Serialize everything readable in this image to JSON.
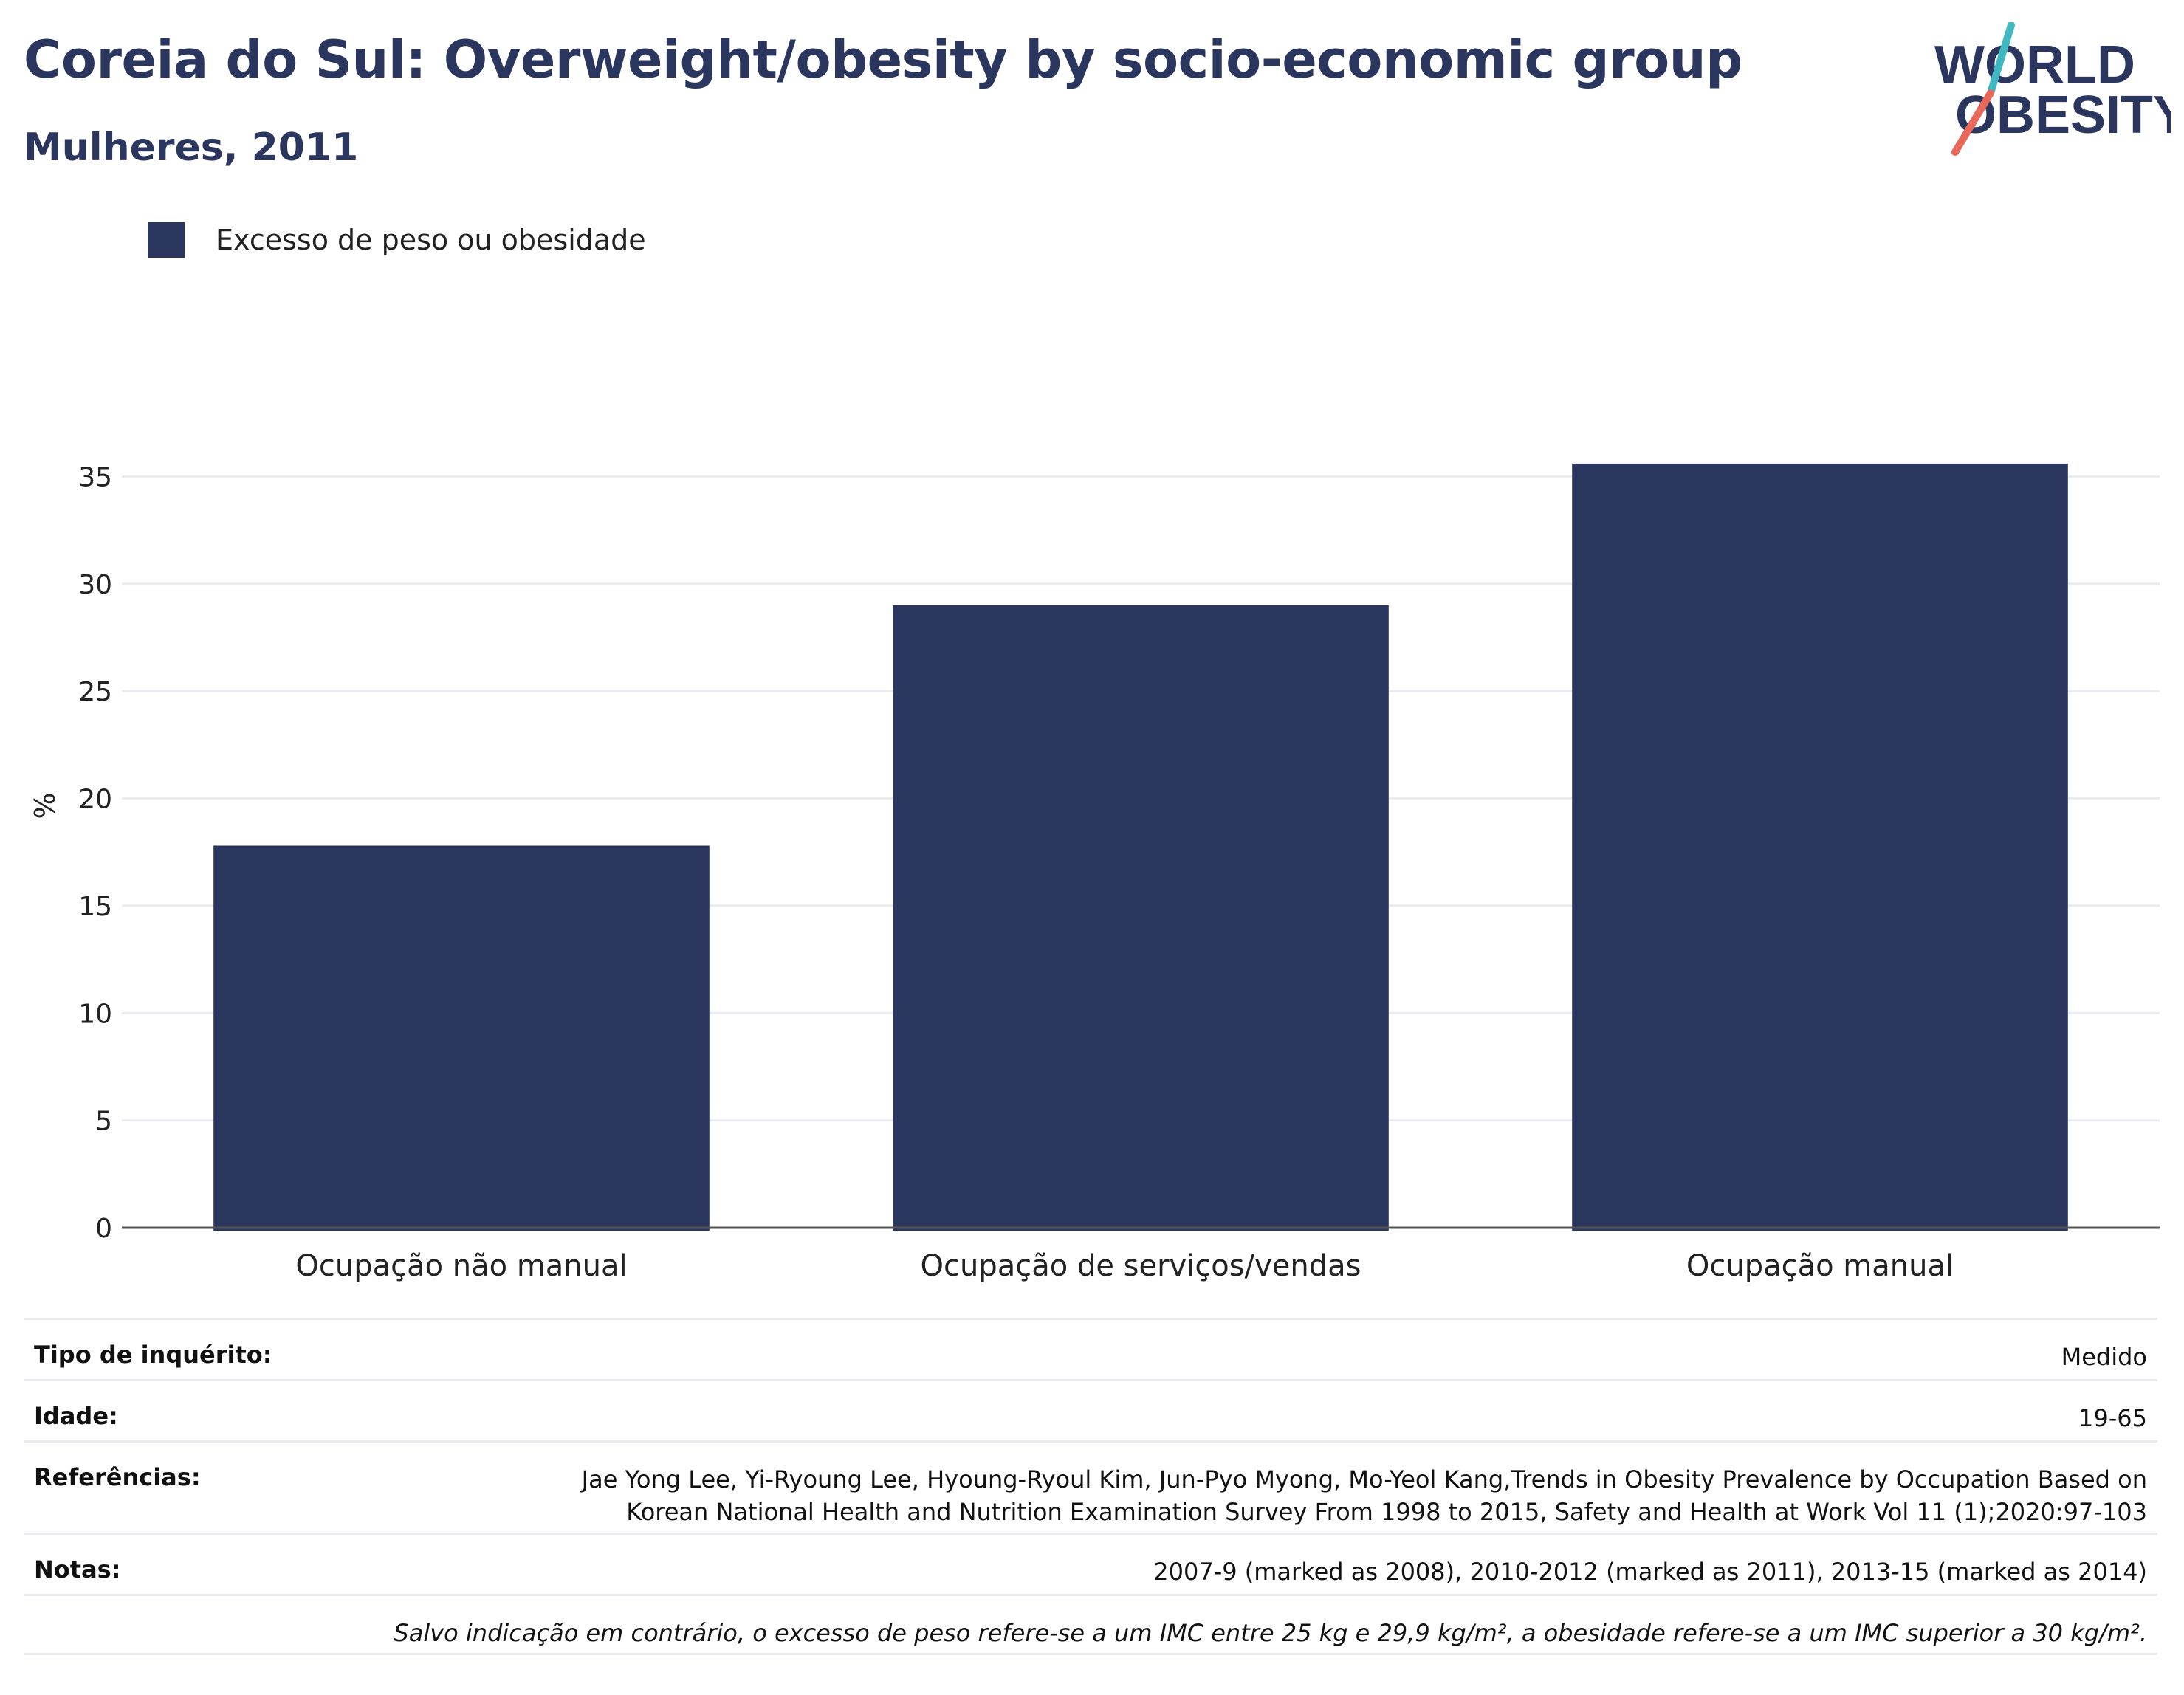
{
  "header": {
    "title": "Coreia do Sul: Overweight/obesity by socio-economic group",
    "subtitle": "Mulheres, 2011"
  },
  "logo": {
    "text_line1": "WORLD",
    "text_line2": "OBESITY",
    "colors": {
      "text": "#2a365e",
      "slash_top": "#3fb8c1",
      "slash_bottom": "#e8685a"
    }
  },
  "legend": {
    "label": "Excesso de peso ou obesidade",
    "color": "#2a365e"
  },
  "chart_data": {
    "type": "bar",
    "categories": [
      "Ocupação não manual",
      "Ocupação de serviços/vendas",
      "Ocupação manual"
    ],
    "series": [
      {
        "name": "Excesso de peso ou obesidade",
        "values": [
          17.8,
          29.0,
          35.6
        ],
        "color": "#2a365e"
      }
    ],
    "ylabel": "%",
    "ylim": [
      0,
      40
    ],
    "yticks": [
      0,
      5,
      10,
      15,
      20,
      25,
      30,
      35
    ],
    "grid": true
  },
  "meta": {
    "survey_type_label": "Tipo de inquérito:",
    "survey_type_value": "Medido",
    "age_label": "Idade:",
    "age_value": "19-65",
    "references_label": "Referências:",
    "references_line1": "Jae Yong Lee, Yi-Ryoung Lee, Hyoung-Ryoul Kim, Jun-Pyo Myong, Mo-Yeol Kang,Trends in Obesity Prevalence by Occupation Based on",
    "references_line2": "Korean National Health and Nutrition Examination Survey From 1998 to 2015, Safety and Health at Work Vol 11 (1);2020:97-103",
    "notes_label": "Notas:",
    "notes_value": "2007-9 (marked as 2008), 2010-2012 (marked as 2011), 2013-15 (marked as 2014)",
    "footnote": "Salvo indicação em contrário, o excesso de peso refere-se a um IMC entre 25 kg e 29,9 kg/m², a obesidade refere-se a um IMC superior a 30 kg/m²."
  }
}
